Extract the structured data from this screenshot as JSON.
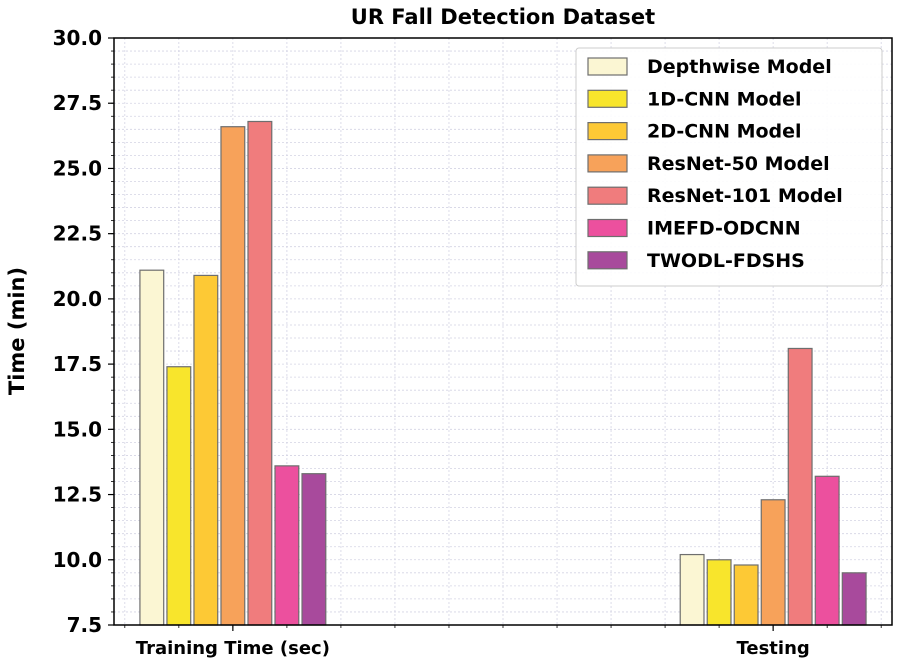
{
  "chart_data": {
    "type": "bar",
    "title": "UR Fall Detection Dataset",
    "xlabel": "",
    "ylabel": "Time (min)",
    "categories": [
      "Training Time (sec)",
      "Testing"
    ],
    "ylim": [
      7.5,
      30.0
    ],
    "yticks": [
      "7.5",
      "10.0",
      "12.5",
      "15.0",
      "17.5",
      "20.0",
      "22.5",
      "25.0",
      "27.5",
      "30.0"
    ],
    "grid": true,
    "legend_position": "top-right",
    "series": [
      {
        "name": "Depthwise Model",
        "color": "#fbf6d3",
        "values": [
          21.1,
          10.2
        ]
      },
      {
        "name": "1D-CNN Model",
        "color": "#f8e52c",
        "values": [
          17.4,
          10.0
        ]
      },
      {
        "name": "2D-CNN Model",
        "color": "#fdc935",
        "values": [
          20.9,
          9.8
        ]
      },
      {
        "name": "ResNet-50 Model",
        "color": "#f7a25a",
        "values": [
          26.6,
          12.3
        ]
      },
      {
        "name": "ResNet-101 Model",
        "color": "#f07c7d",
        "values": [
          26.8,
          18.1
        ]
      },
      {
        "name": "IMEFD-ODCNN",
        "color": "#ec509e",
        "values": [
          13.6,
          13.2
        ]
      },
      {
        "name": "TWODL-FDSHS",
        "color": "#a84a9c",
        "values": [
          13.3,
          9.5
        ]
      }
    ]
  }
}
